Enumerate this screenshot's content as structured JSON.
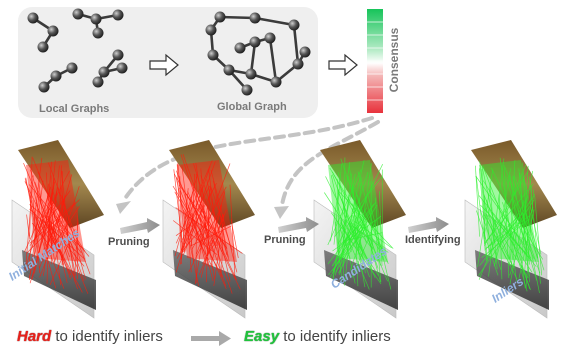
{
  "top_panel": {
    "local_label": "Local Graphs",
    "global_label": "Global Graph",
    "consensus_label": "Consensus"
  },
  "pipeline": {
    "images": [
      {
        "label": "Initial Matches",
        "match_color": "red"
      },
      {
        "label": "",
        "match_color": "red"
      },
      {
        "label": "Candidates",
        "match_color": "green"
      },
      {
        "label": "Inliers",
        "match_color": "green"
      }
    ],
    "steps": [
      "Pruning",
      "Pruning",
      "Identifying"
    ]
  },
  "bottom": {
    "hard_word": "Hard",
    "hard_rest": "to identify inliers",
    "easy_word": "Easy",
    "easy_rest": "to identify inliers"
  },
  "colors": {
    "panel_bg": "#efefef",
    "match_red": "#ff1a0a",
    "match_green": "#2cf02c",
    "consensus_high": "#16c45a",
    "consensus_low": "#e8323c"
  }
}
